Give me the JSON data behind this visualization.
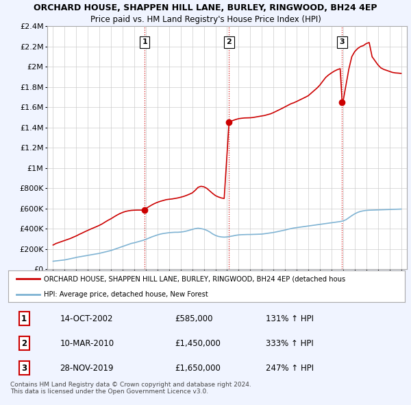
{
  "title": "ORCHARD HOUSE, SHAPPEN HILL LANE, BURLEY, RINGWOOD, BH24 4EP",
  "subtitle": "Price paid vs. HM Land Registry's House Price Index (HPI)",
  "hpi_x": [
    1995.0,
    1995.08,
    1995.17,
    1995.25,
    1995.33,
    1995.42,
    1995.5,
    1995.58,
    1995.67,
    1995.75,
    1995.83,
    1995.92,
    1996.0,
    1996.08,
    1996.17,
    1996.25,
    1996.33,
    1996.42,
    1996.5,
    1996.58,
    1996.67,
    1996.75,
    1996.83,
    1996.92,
    1997.0,
    1997.25,
    1997.5,
    1997.75,
    1998.0,
    1998.25,
    1998.5,
    1998.75,
    1999.0,
    1999.25,
    1999.5,
    1999.75,
    2000.0,
    2000.25,
    2000.5,
    2000.75,
    2001.0,
    2001.25,
    2001.5,
    2001.75,
    2002.0,
    2002.25,
    2002.5,
    2002.75,
    2003.0,
    2003.25,
    2003.5,
    2003.75,
    2004.0,
    2004.25,
    2004.5,
    2004.75,
    2005.0,
    2005.25,
    2005.5,
    2005.75,
    2006.0,
    2006.25,
    2006.5,
    2006.75,
    2007.0,
    2007.25,
    2007.5,
    2007.75,
    2008.0,
    2008.25,
    2008.5,
    2008.75,
    2009.0,
    2009.25,
    2009.5,
    2009.75,
    2010.0,
    2010.25,
    2010.5,
    2010.75,
    2011.0,
    2011.25,
    2011.5,
    2011.75,
    2012.0,
    2012.25,
    2012.5,
    2012.75,
    2013.0,
    2013.25,
    2013.5,
    2013.75,
    2014.0,
    2014.25,
    2014.5,
    2014.75,
    2015.0,
    2015.25,
    2015.5,
    2015.75,
    2016.0,
    2016.25,
    2016.5,
    2016.75,
    2017.0,
    2017.25,
    2017.5,
    2017.75,
    2018.0,
    2018.25,
    2018.5,
    2018.75,
    2019.0,
    2019.25,
    2019.5,
    2019.75,
    2020.0,
    2020.25,
    2020.5,
    2020.75,
    2021.0,
    2021.25,
    2021.5,
    2021.75,
    2022.0,
    2022.25,
    2022.5,
    2022.75,
    2023.0,
    2023.25,
    2023.5,
    2023.75,
    2024.0,
    2024.25,
    2024.5,
    2024.75,
    2025.0
  ],
  "hpi_y": [
    80000,
    81000,
    82000,
    83000,
    84000,
    85000,
    86000,
    87000,
    88000,
    89000,
    90000,
    91000,
    93000,
    95000,
    97000,
    99000,
    101000,
    103000,
    105000,
    107000,
    109000,
    111000,
    113000,
    115000,
    118000,
    123000,
    128000,
    133000,
    138000,
    143000,
    148000,
    153000,
    158000,
    165000,
    172000,
    179000,
    186000,
    196000,
    206000,
    216000,
    226000,
    236000,
    246000,
    256000,
    262000,
    270000,
    278000,
    286000,
    296000,
    308000,
    320000,
    330000,
    340000,
    348000,
    354000,
    358000,
    362000,
    364000,
    366000,
    366000,
    368000,
    372000,
    378000,
    386000,
    394000,
    402000,
    406000,
    402000,
    396000,
    385000,
    370000,
    350000,
    335000,
    325000,
    320000,
    318000,
    320000,
    325000,
    330000,
    336000,
    340000,
    342000,
    343000,
    344000,
    344000,
    345000,
    346000,
    347000,
    348000,
    352000,
    356000,
    360000,
    364000,
    370000,
    376000,
    382000,
    388000,
    396000,
    402000,
    408000,
    412000,
    416000,
    420000,
    424000,
    428000,
    432000,
    436000,
    440000,
    444000,
    448000,
    452000,
    456000,
    460000,
    464000,
    468000,
    472000,
    478000,
    490000,
    510000,
    530000,
    548000,
    562000,
    572000,
    578000,
    582000,
    584000,
    585000,
    586000,
    587000,
    588000,
    589000,
    590000,
    591000,
    592000,
    593000,
    594000,
    595000
  ],
  "house_x": [
    1995.0,
    1995.25,
    1995.5,
    1995.75,
    1996.0,
    1996.25,
    1996.5,
    1996.75,
    1997.0,
    1997.25,
    1997.5,
    1997.75,
    1998.0,
    1998.25,
    1998.5,
    1998.75,
    1999.0,
    1999.25,
    1999.5,
    1999.75,
    2000.0,
    2000.25,
    2000.5,
    2000.75,
    2001.0,
    2001.25,
    2001.5,
    2001.75,
    2002.0,
    2002.25,
    2002.5,
    2002.75,
    2002.9,
    2003.0,
    2003.25,
    2003.5,
    2003.75,
    2004.0,
    2004.25,
    2004.5,
    2004.75,
    2005.0,
    2005.25,
    2005.5,
    2005.75,
    2006.0,
    2006.25,
    2006.5,
    2006.75,
    2007.0,
    2007.25,
    2007.5,
    2007.75,
    2008.0,
    2008.25,
    2008.5,
    2008.75,
    2009.0,
    2009.25,
    2009.5,
    2009.75,
    2010.17,
    2010.25,
    2010.5,
    2010.75,
    2011.0,
    2011.25,
    2011.5,
    2011.75,
    2012.0,
    2012.25,
    2012.5,
    2012.75,
    2013.0,
    2013.25,
    2013.5,
    2013.75,
    2014.0,
    2014.25,
    2014.5,
    2014.75,
    2015.0,
    2015.25,
    2015.5,
    2015.75,
    2016.0,
    2016.25,
    2016.5,
    2016.75,
    2017.0,
    2017.25,
    2017.5,
    2017.75,
    2018.0,
    2018.25,
    2018.5,
    2018.75,
    2019.0,
    2019.25,
    2019.5,
    2019.75,
    2019.92,
    2020.0,
    2020.25,
    2020.5,
    2020.75,
    2021.0,
    2021.25,
    2021.5,
    2021.75,
    2022.0,
    2022.25,
    2022.5,
    2022.75,
    2023.0,
    2023.25,
    2023.5,
    2023.75,
    2024.0,
    2024.25,
    2024.5,
    2024.75,
    2025.0
  ],
  "house_y": [
    240000,
    255000,
    265000,
    275000,
    285000,
    295000,
    305000,
    318000,
    330000,
    345000,
    358000,
    372000,
    385000,
    398000,
    410000,
    422000,
    435000,
    450000,
    468000,
    485000,
    500000,
    518000,
    535000,
    550000,
    562000,
    572000,
    578000,
    582000,
    584000,
    585000,
    585000,
    585000,
    585000,
    600000,
    618000,
    635000,
    650000,
    662000,
    672000,
    680000,
    688000,
    692000,
    695000,
    700000,
    705000,
    712000,
    720000,
    730000,
    742000,
    755000,
    780000,
    810000,
    820000,
    815000,
    800000,
    775000,
    750000,
    728000,
    715000,
    705000,
    700000,
    1450000,
    1460000,
    1470000,
    1480000,
    1488000,
    1492000,
    1495000,
    1496000,
    1497000,
    1500000,
    1505000,
    1510000,
    1515000,
    1520000,
    1528000,
    1536000,
    1548000,
    1562000,
    1576000,
    1590000,
    1605000,
    1620000,
    1635000,
    1645000,
    1658000,
    1672000,
    1686000,
    1700000,
    1715000,
    1740000,
    1765000,
    1790000,
    1820000,
    1858000,
    1895000,
    1920000,
    1940000,
    1958000,
    1972000,
    1982000,
    1650000,
    1660000,
    1820000,
    1980000,
    2100000,
    2150000,
    2180000,
    2200000,
    2210000,
    2230000,
    2240000,
    2100000,
    2060000,
    2020000,
    1990000,
    1975000,
    1965000,
    1955000,
    1945000,
    1940000,
    1938000,
    1935000
  ],
  "sale_points": [
    {
      "year": 2002.9,
      "price": 585000,
      "label": "1"
    },
    {
      "year": 2010.17,
      "price": 1450000,
      "label": "2"
    },
    {
      "year": 2019.92,
      "price": 1650000,
      "label": "3"
    }
  ],
  "ylim": [
    0,
    2400000
  ],
  "xlim": [
    1994.5,
    2025.5
  ],
  "yticks": [
    0,
    200000,
    400000,
    600000,
    800000,
    1000000,
    1200000,
    1400000,
    1600000,
    1800000,
    2000000,
    2200000,
    2400000
  ],
  "ytick_labels": [
    "£0",
    "£200K",
    "£400K",
    "£600K",
    "£800K",
    "£1M",
    "£1.2M",
    "£1.4M",
    "£1.6M",
    "£1.8M",
    "£2M",
    "£2.2M",
    "£2.4M"
  ],
  "red_color": "#cc0000",
  "blue_color": "#7fb3d3",
  "legend_label_red": "ORCHARD HOUSE, SHAPPEN HILL LANE, BURLEY, RINGWOOD, BH24 4EP (detached hous",
  "legend_label_blue": "HPI: Average price, detached house, New Forest",
  "table_data": [
    {
      "num": "1",
      "date": "14-OCT-2002",
      "price": "£585,000",
      "hpi": "131% ↑ HPI"
    },
    {
      "num": "2",
      "date": "10-MAR-2010",
      "price": "£1,450,000",
      "hpi": "333% ↑ HPI"
    },
    {
      "num": "3",
      "date": "28-NOV-2019",
      "price": "£1,650,000",
      "hpi": "247% ↑ HPI"
    }
  ],
  "footer": "Contains HM Land Registry data © Crown copyright and database right 2024.\nThis data is licensed under the Open Government Licence v3.0.",
  "bg_color": "#f0f4ff",
  "plot_bg_color": "#ffffff"
}
